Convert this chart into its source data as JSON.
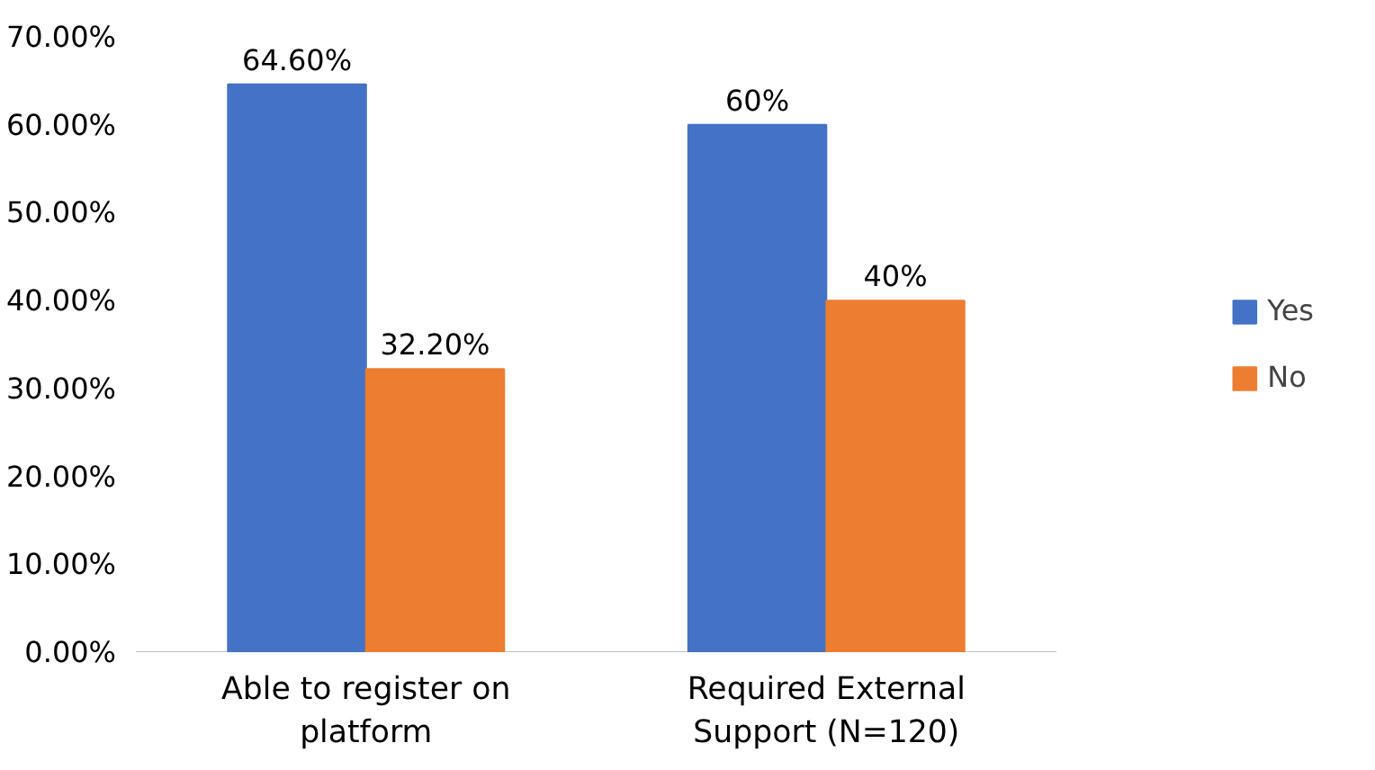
{
  "chart_data": {
    "type": "bar",
    "categories": [
      "Able to register on platform",
      "Required External Support (N=120)"
    ],
    "series": [
      {
        "name": "Yes",
        "color": "#4472c4",
        "values": [
          64.6,
          60
        ],
        "value_labels": [
          "64.60%",
          "60%"
        ]
      },
      {
        "name": "No",
        "color": "#ed7d31",
        "values": [
          32.2,
          40
        ],
        "value_labels": [
          "32.20%",
          "40%"
        ]
      }
    ],
    "ylim": [
      0,
      70
    ],
    "yticks": [
      {
        "value": 0,
        "label": "0.00%"
      },
      {
        "value": 10,
        "label": "10.00%"
      },
      {
        "value": 20,
        "label": "20.00%"
      },
      {
        "value": 30,
        "label": "30.00%"
      },
      {
        "value": 40,
        "label": "40.00%"
      },
      {
        "value": 50,
        "label": "50.00%"
      },
      {
        "value": 60,
        "label": "60.00%"
      },
      {
        "value": 70,
        "label": "70.00%"
      }
    ],
    "grid": false,
    "legend": "right"
  }
}
